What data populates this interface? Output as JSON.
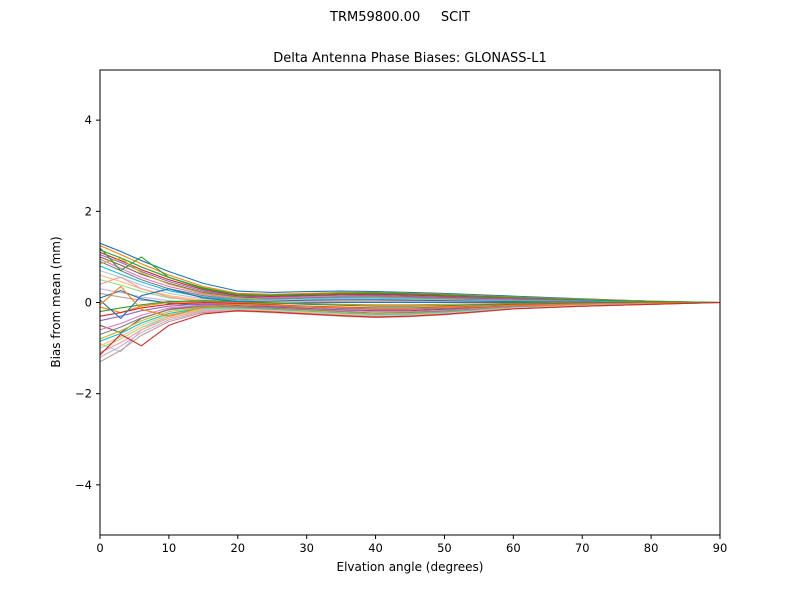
{
  "chart_data": {
    "type": "line",
    "suptitle": "TRM59800.00     SCIT",
    "title": "Delta Antenna Phase Biases: GLONASS-L1",
    "xlabel": "Elvation angle (degrees)",
    "ylabel": "Bias from mean (mm)",
    "xlim": [
      0,
      90
    ],
    "ylim": [
      -5.1,
      5.1
    ],
    "xticks": [
      0,
      10,
      20,
      30,
      40,
      50,
      60,
      70,
      80,
      90
    ],
    "yticks": [
      -4,
      -2,
      0,
      2,
      4
    ],
    "ytick_labels": [
      "−4",
      "−2",
      "0",
      "2",
      "4"
    ],
    "grid": false,
    "legend": "none",
    "x": [
      0,
      3,
      6,
      10,
      15,
      20,
      25,
      30,
      35,
      40,
      45,
      50,
      55,
      60,
      70,
      80,
      90
    ],
    "palette": [
      "#1f77b4",
      "#ff7f0e",
      "#2ca02c",
      "#d62728",
      "#9467bd",
      "#8c564b",
      "#e377c2",
      "#7f7f7f",
      "#bcbd22",
      "#17becf",
      "#aec7e8",
      "#ffbb78",
      "#98df8a",
      "#ff9896",
      "#c5b0d5",
      "#c49c94"
    ],
    "series": [
      {
        "name": "line-01",
        "values": [
          1.3,
          1.12,
          0.92,
          0.68,
          0.42,
          0.25,
          0.22,
          0.24,
          0.25,
          0.24,
          0.22,
          0.2,
          0.17,
          0.14,
          0.08,
          0.03,
          0.0
        ]
      },
      {
        "name": "line-02",
        "values": [
          1.25,
          1.05,
          0.85,
          0.6,
          0.35,
          0.2,
          0.18,
          0.2,
          0.22,
          0.22,
          0.2,
          0.18,
          0.15,
          0.12,
          0.07,
          0.03,
          0.0
        ]
      },
      {
        "name": "line-03",
        "values": [
          1.15,
          0.98,
          0.78,
          0.55,
          0.32,
          0.18,
          0.15,
          0.17,
          0.19,
          0.2,
          0.18,
          0.16,
          0.13,
          0.1,
          0.06,
          0.02,
          0.0
        ]
      },
      {
        "name": "line-04",
        "values": [
          1.1,
          0.92,
          0.72,
          0.5,
          0.28,
          0.15,
          0.13,
          0.15,
          0.17,
          0.18,
          0.16,
          0.14,
          0.11,
          0.09,
          0.05,
          0.02,
          0.0
        ]
      },
      {
        "name": "line-05",
        "values": [
          1.05,
          0.88,
          0.68,
          0.46,
          0.25,
          0.13,
          0.11,
          0.13,
          0.15,
          0.16,
          0.14,
          0.12,
          0.1,
          0.08,
          0.04,
          0.02,
          0.0
        ]
      },
      {
        "name": "line-06",
        "values": [
          1.0,
          0.82,
          0.62,
          0.42,
          0.22,
          0.11,
          0.09,
          0.11,
          0.13,
          0.14,
          0.12,
          0.1,
          0.08,
          0.06,
          0.03,
          0.01,
          0.0
        ]
      },
      {
        "name": "line-07",
        "values": [
          0.95,
          0.75,
          0.55,
          0.35,
          0.18,
          0.08,
          0.1,
          0.12,
          0.14,
          0.13,
          0.11,
          0.09,
          0.07,
          0.05,
          0.03,
          0.01,
          0.0
        ]
      },
      {
        "name": "line-08",
        "values": [
          0.9,
          0.7,
          0.5,
          0.3,
          0.15,
          0.06,
          0.08,
          0.1,
          0.12,
          0.12,
          0.1,
          0.08,
          0.06,
          0.04,
          0.02,
          0.01,
          0.0
        ]
      },
      {
        "name": "line-09",
        "values": [
          0.85,
          0.97,
          0.65,
          0.4,
          0.2,
          0.1,
          0.05,
          0.08,
          0.1,
          0.11,
          0.09,
          0.07,
          0.05,
          0.04,
          0.02,
          0.01,
          0.0
        ]
      },
      {
        "name": "line-10",
        "values": [
          0.8,
          0.62,
          0.45,
          0.26,
          0.12,
          0.05,
          0.06,
          0.08,
          0.1,
          0.1,
          0.08,
          0.06,
          0.05,
          0.03,
          0.02,
          0.01,
          0.0
        ]
      },
      {
        "name": "line-11",
        "values": [
          0.7,
          0.55,
          0.38,
          0.2,
          0.08,
          0.03,
          0.05,
          0.07,
          0.08,
          0.08,
          0.07,
          0.05,
          0.04,
          0.02,
          0.01,
          0.0,
          0.0
        ]
      },
      {
        "name": "line-12",
        "values": [
          0.6,
          0.46,
          0.3,
          0.15,
          0.05,
          0.02,
          0.04,
          0.05,
          0.06,
          0.06,
          0.05,
          0.04,
          0.03,
          0.02,
          0.01,
          0.0,
          0.0
        ]
      },
      {
        "name": "line-13",
        "values": [
          0.5,
          0.38,
          0.24,
          0.1,
          0.03,
          0.0,
          0.02,
          0.04,
          0.05,
          0.05,
          0.04,
          0.03,
          0.02,
          0.01,
          0.01,
          0.0,
          0.0
        ]
      },
      {
        "name": "line-14",
        "values": [
          0.4,
          0.56,
          0.3,
          0.12,
          0.02,
          -0.02,
          0.0,
          0.02,
          0.03,
          0.03,
          0.03,
          0.02,
          0.01,
          0.01,
          0.0,
          0.0,
          0.0
        ]
      },
      {
        "name": "line-15",
        "values": [
          0.3,
          0.22,
          0.12,
          0.04,
          -0.02,
          -0.03,
          -0.01,
          0.01,
          0.02,
          0.02,
          0.02,
          0.01,
          0.01,
          0.0,
          0.0,
          0.0,
          0.0
        ]
      },
      {
        "name": "line-16",
        "values": [
          0.2,
          0.12,
          0.05,
          0.0,
          -0.04,
          -0.05,
          -0.02,
          0.0,
          0.01,
          0.01,
          0.01,
          0.0,
          0.0,
          0.0,
          0.0,
          0.0,
          0.0
        ]
      },
      {
        "name": "line-17",
        "values": [
          0.1,
          0.26,
          0.08,
          -0.02,
          -0.06,
          -0.06,
          -0.03,
          -0.01,
          0.0,
          0.0,
          0.0,
          0.0,
          0.0,
          0.0,
          0.0,
          0.0,
          0.0
        ]
      },
      {
        "name": "line-18",
        "values": [
          -0.1,
          -0.22,
          -0.08,
          0.0,
          0.02,
          0.0,
          -0.02,
          -0.03,
          -0.04,
          -0.05,
          -0.05,
          -0.04,
          -0.03,
          -0.02,
          -0.01,
          0.0,
          0.0
        ]
      },
      {
        "name": "line-19",
        "values": [
          -0.2,
          -0.12,
          -0.05,
          0.02,
          0.04,
          0.02,
          -0.01,
          -0.04,
          -0.06,
          -0.08,
          -0.08,
          -0.07,
          -0.05,
          -0.03,
          -0.02,
          -0.01,
          0.0
        ]
      },
      {
        "name": "line-20",
        "values": [
          -0.3,
          -0.22,
          -0.12,
          -0.04,
          0.0,
          -0.02,
          -0.05,
          -0.08,
          -0.1,
          -0.12,
          -0.12,
          -0.1,
          -0.08,
          -0.05,
          -0.03,
          -0.01,
          0.0
        ]
      },
      {
        "name": "line-21",
        "values": [
          -0.4,
          -0.3,
          -0.18,
          -0.08,
          -0.03,
          -0.05,
          -0.08,
          -0.1,
          -0.13,
          -0.15,
          -0.15,
          -0.13,
          -0.1,
          -0.07,
          -0.04,
          -0.02,
          0.0
        ]
      },
      {
        "name": "line-22",
        "values": [
          -0.5,
          -0.66,
          -0.35,
          -0.15,
          -0.06,
          -0.08,
          -0.1,
          -0.13,
          -0.16,
          -0.18,
          -0.18,
          -0.15,
          -0.12,
          -0.08,
          -0.05,
          -0.02,
          0.0
        ]
      },
      {
        "name": "line-23",
        "values": [
          -0.6,
          -0.46,
          -0.28,
          -0.12,
          -0.06,
          -0.09,
          -0.12,
          -0.15,
          -0.18,
          -0.2,
          -0.2,
          -0.17,
          -0.13,
          -0.09,
          -0.05,
          -0.02,
          0.0
        ]
      },
      {
        "name": "line-24",
        "values": [
          -0.7,
          -0.54,
          -0.34,
          -0.16,
          -0.08,
          -0.1,
          -0.13,
          -0.16,
          -0.2,
          -0.23,
          -0.22,
          -0.19,
          -0.15,
          -0.1,
          -0.06,
          -0.03,
          0.0
        ]
      },
      {
        "name": "line-25",
        "values": [
          -0.8,
          -0.62,
          -0.4,
          -0.2,
          -0.1,
          -0.12,
          -0.15,
          -0.18,
          -0.22,
          -0.25,
          -0.24,
          -0.21,
          -0.16,
          -0.11,
          -0.06,
          -0.03,
          0.0
        ]
      },
      {
        "name": "line-26",
        "values": [
          -0.85,
          -0.68,
          -0.45,
          -0.24,
          -0.12,
          -0.13,
          -0.16,
          -0.2,
          -0.24,
          -0.27,
          -0.26,
          -0.22,
          -0.17,
          -0.12,
          -0.07,
          -0.03,
          0.0
        ]
      },
      {
        "name": "line-27",
        "values": [
          -0.9,
          -1.08,
          -0.6,
          -0.3,
          -0.14,
          -0.14,
          -0.17,
          -0.21,
          -0.25,
          -0.28,
          -0.27,
          -0.23,
          -0.18,
          -0.12,
          -0.07,
          -0.03,
          0.0
        ]
      },
      {
        "name": "line-28",
        "values": [
          -0.95,
          -0.75,
          -0.5,
          -0.27,
          -0.15,
          -0.15,
          -0.18,
          -0.22,
          -0.26,
          -0.29,
          -0.28,
          -0.24,
          -0.19,
          -0.13,
          -0.07,
          -0.03,
          0.0
        ]
      },
      {
        "name": "line-29",
        "values": [
          -1.0,
          -0.8,
          -0.55,
          -0.3,
          -0.16,
          -0.16,
          -0.19,
          -0.23,
          -0.27,
          -0.3,
          -0.29,
          -0.25,
          -0.19,
          -0.13,
          -0.08,
          -0.03,
          0.0
        ]
      },
      {
        "name": "line-30",
        "values": [
          -1.1,
          -0.88,
          -0.6,
          -0.34,
          -0.18,
          -0.17,
          -0.2,
          -0.24,
          -0.28,
          -0.31,
          -0.3,
          -0.26,
          -0.2,
          -0.14,
          -0.08,
          -0.04,
          0.0
        ]
      },
      {
        "name": "line-31",
        "values": [
          -1.2,
          -0.96,
          -0.66,
          -0.38,
          -0.2,
          -0.18,
          -0.21,
          -0.25,
          -0.29,
          -0.32,
          -0.31,
          -0.26,
          -0.2,
          -0.14,
          -0.08,
          -0.04,
          0.0
        ]
      },
      {
        "name": "line-32",
        "values": [
          -1.3,
          -1.05,
          -0.72,
          -0.42,
          -0.22,
          -0.19,
          -0.22,
          -0.26,
          -0.3,
          -0.33,
          -0.31,
          -0.27,
          -0.21,
          -0.14,
          -0.08,
          -0.04,
          0.0
        ]
      },
      {
        "name": "line-33",
        "values": [
          0.05,
          -0.35,
          0.15,
          0.3,
          0.1,
          0.02,
          0.03,
          0.05,
          0.06,
          0.06,
          0.05,
          0.04,
          0.03,
          0.02,
          0.01,
          0.0,
          0.0
        ]
      },
      {
        "name": "line-34",
        "values": [
          -0.05,
          0.35,
          -0.15,
          -0.3,
          -0.1,
          -0.04,
          -0.06,
          -0.09,
          -0.11,
          -0.13,
          -0.13,
          -0.11,
          -0.09,
          -0.06,
          -0.03,
          -0.01,
          0.0
        ]
      },
      {
        "name": "line-35",
        "values": [
          1.2,
          0.7,
          1.0,
          0.55,
          0.3,
          0.17,
          0.16,
          0.18,
          0.2,
          0.21,
          0.19,
          0.17,
          0.14,
          0.11,
          0.06,
          0.02,
          0.0
        ]
      },
      {
        "name": "line-36",
        "values": [
          -1.15,
          -0.7,
          -0.95,
          -0.5,
          -0.25,
          -0.18,
          -0.21,
          -0.25,
          -0.29,
          -0.32,
          -0.3,
          -0.26,
          -0.2,
          -0.14,
          -0.08,
          -0.04,
          0.0
        ]
      }
    ]
  }
}
